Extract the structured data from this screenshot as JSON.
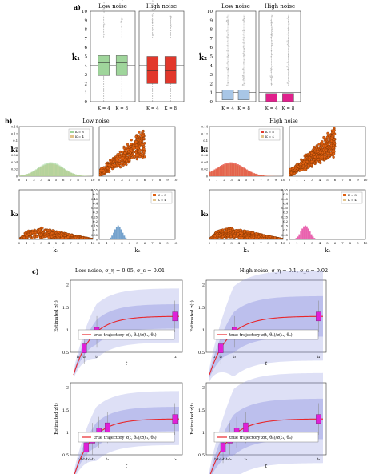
{
  "panels": {
    "a": "a)",
    "b": "b)",
    "c": "c)"
  },
  "section_a": {
    "low_title": "Low noise",
    "high_title": "High noise",
    "ylabel_k1": "k̂₁",
    "ylabel_k2": "k̂₂",
    "yticks": [
      "0",
      "1",
      "2",
      "3",
      "4",
      "5",
      "6",
      "7",
      "8",
      "9",
      "10"
    ],
    "xtick_k4": "K = 4",
    "xtick_k8": "K = 8"
  },
  "section_b": {
    "low_title": "Low noise",
    "high_title": "High noise",
    "legend": [
      "K = 8",
      "K = 4"
    ],
    "hist_ticks": [
      "0",
      "0.02",
      "0.04",
      "0.06",
      "0.08",
      "0.1",
      "0.12",
      "0.14"
    ],
    "hist_ticks2": [
      "0",
      "0.05",
      "0.1",
      "0.15",
      "0.2",
      "0.25",
      "0.3",
      "0.35",
      "0.4",
      "0.45",
      "0.5",
      "0.55"
    ],
    "axis_ticks": [
      "0",
      "1",
      "2",
      "3",
      "4",
      "5",
      "6",
      "7",
      "8",
      "9",
      "10"
    ],
    "xlabel_k1": "k₁",
    "xlabel_k2": "k₂",
    "ylabel_k1": "k̂₁",
    "ylabel_k2": "k̂₂"
  },
  "section_c": {
    "low_title": "Low noise, σ_η = 0.05, σ_ε = 0.01",
    "high_title": "High noise, σ_η = 0.1, σ_ε = 0.02",
    "ylabel": "Estimated z(t)",
    "xlabel": "t",
    "legend": "true trajectory z(t, θ₀)/z(t₁, θ₀)",
    "yticks": [
      "0.5",
      "1",
      "1.5",
      "2"
    ],
    "xticks_top": [
      "t₁",
      "t₂",
      "t₃",
      "t₄"
    ],
    "xticks_bottom": [
      "t₁t₂t₃t₄t₅t₆",
      "t₇",
      "t₈"
    ]
  },
  "colors": {
    "green": "#9fd59b",
    "red": "#e2372b",
    "blue": "#a8c6e6",
    "magenta": "#e0208c",
    "orange": "#e06010",
    "tan": "#e3c48c",
    "band": "#8a8ee0",
    "traj": "#e8262b",
    "box": "#e020d8"
  }
}
